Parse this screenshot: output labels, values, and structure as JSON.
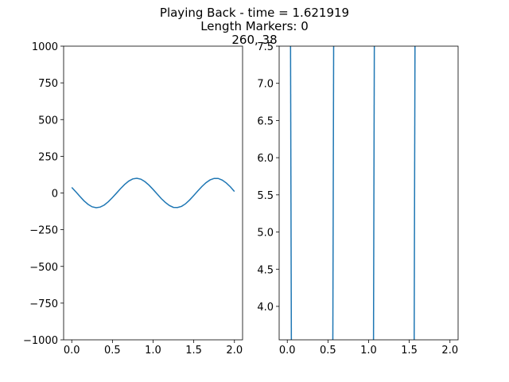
{
  "figure": {
    "title_lines": [
      "Playing Back - time = 1.621919",
      "Length Markers: 0",
      "260, 38"
    ],
    "line_color": "#1f77b4"
  },
  "chart_data": [
    {
      "type": "line",
      "name": "waveform",
      "title": "",
      "xlabel": "",
      "ylabel": "",
      "xlim": [
        -0.1,
        2.1
      ],
      "ylim": [
        -1000,
        1000
      ],
      "xticks": [
        0.0,
        0.5,
        1.0,
        1.5,
        2.0
      ],
      "xtick_labels": [
        "0.0",
        "0.5",
        "1.0",
        "1.5",
        "2.0"
      ],
      "yticks": [
        1000,
        750,
        500,
        250,
        0,
        -250,
        -500,
        -750,
        -1000
      ],
      "ytick_labels": [
        "1000",
        "750",
        "500",
        "250",
        "0",
        "−250",
        "−500",
        "−750",
        "−1000"
      ],
      "grid": false,
      "series": [
        {
          "name": "signal",
          "x": [
            0.0,
            0.05,
            0.1,
            0.15,
            0.2,
            0.25,
            0.3,
            0.35,
            0.4,
            0.45,
            0.5,
            0.55,
            0.6,
            0.65,
            0.7,
            0.75,
            0.8,
            0.85,
            0.9,
            0.95,
            1.0,
            1.05,
            1.1,
            1.15,
            1.2,
            1.25,
            1.3,
            1.35,
            1.4,
            1.45,
            1.5,
            1.55,
            1.6,
            1.65,
            1.7,
            1.75,
            1.8,
            1.85,
            1.9,
            1.95,
            2.0
          ],
          "y": [
            38,
            8,
            -23,
            -53,
            -77,
            -94,
            -100,
            -96,
            -82,
            -59,
            -31,
            -1,
            30,
            58,
            81,
            96,
            100,
            94,
            77,
            53,
            24,
            -7,
            -38,
            -64,
            -85,
            -98,
            -99,
            -91,
            -73,
            -47,
            -17,
            14,
            44,
            70,
            89,
            99,
            99,
            88,
            68,
            42,
            10
          ]
        }
      ]
    },
    {
      "type": "line",
      "name": "markers",
      "title": "",
      "xlabel": "",
      "ylabel": "",
      "xlim": [
        -0.1,
        2.1
      ],
      "ylim": [
        3.55,
        7.5
      ],
      "xticks": [
        0.0,
        0.5,
        1.0,
        1.5,
        2.0
      ],
      "xtick_labels": [
        "0.0",
        "0.5",
        "1.0",
        "1.5",
        "2.0"
      ],
      "yticks": [
        7.5,
        7.0,
        6.5,
        6.0,
        5.5,
        5.0,
        4.5,
        4.0
      ],
      "ytick_labels": [
        "7.5",
        "7.0",
        "6.5",
        "6.0",
        "5.5",
        "5.0",
        "4.5",
        "4.0"
      ],
      "grid": false,
      "vertical_lines": [
        {
          "x_top": 0.04,
          "x_bottom": 0.05
        },
        {
          "x_top": 0.57,
          "x_bottom": 0.56
        },
        {
          "x_top": 1.07,
          "x_bottom": 1.06
        },
        {
          "x_top": 1.57,
          "x_bottom": 1.56
        }
      ]
    }
  ]
}
